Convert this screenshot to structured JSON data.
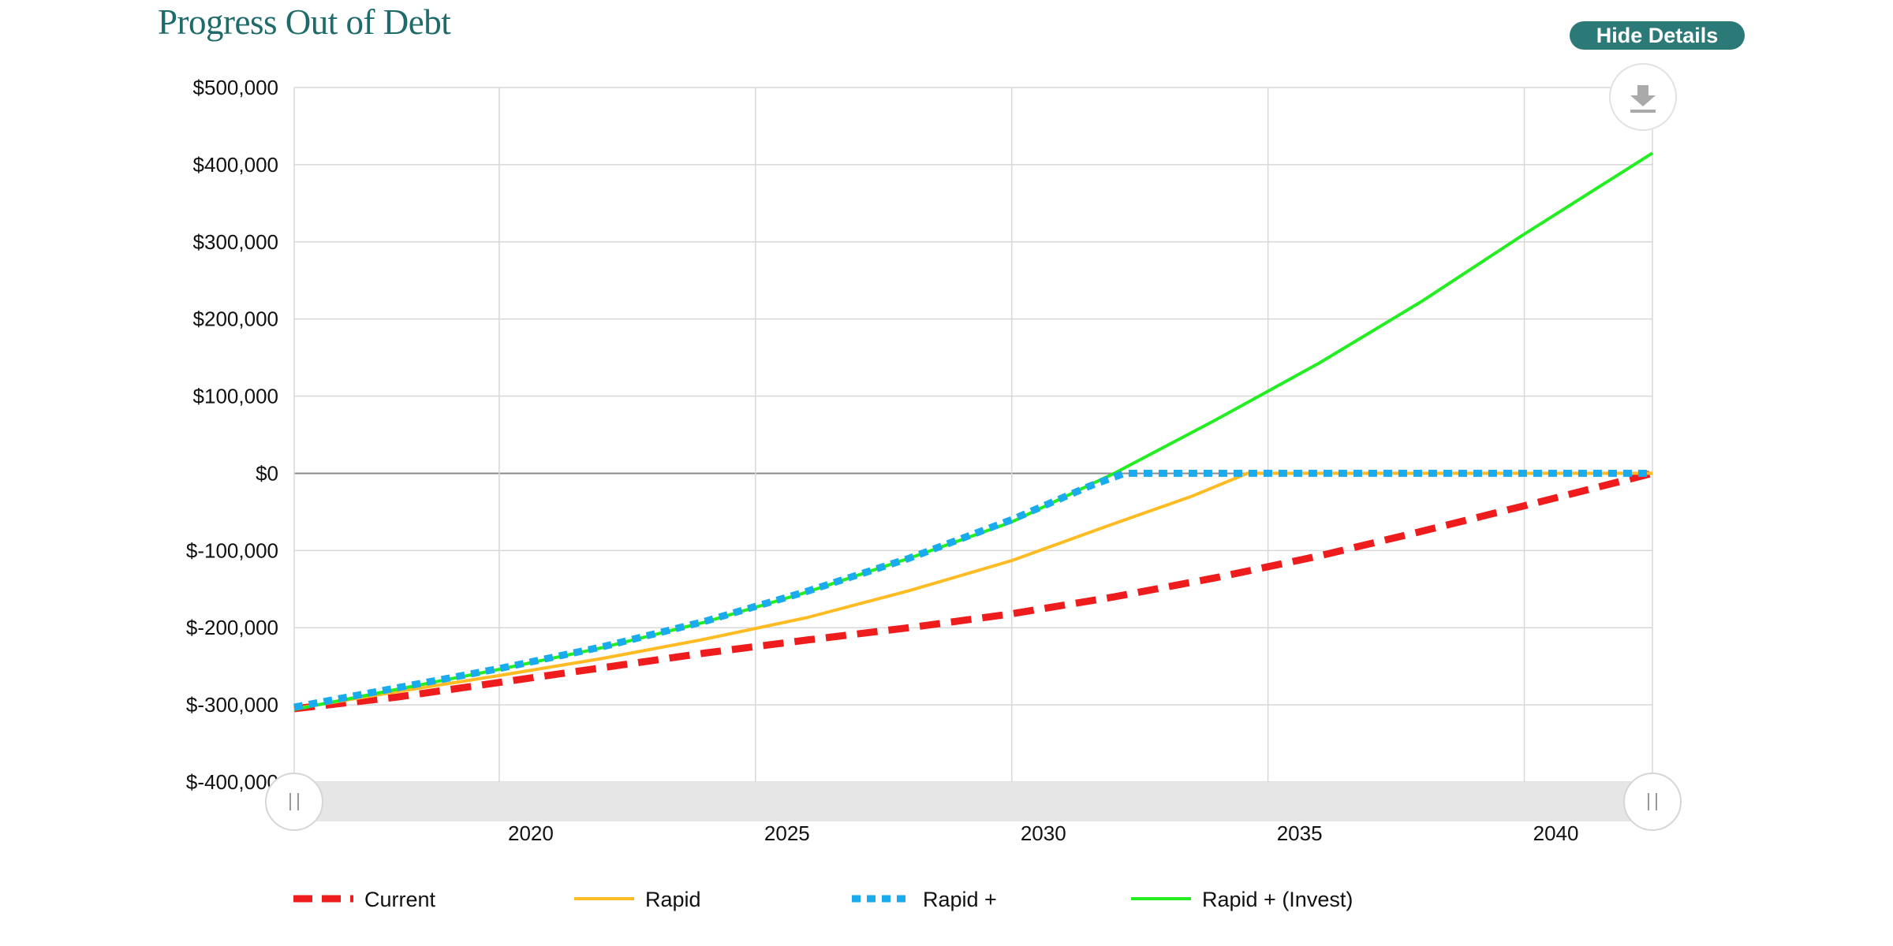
{
  "header": {
    "title": "Progress Out of Debt",
    "hide_details_label": "Hide Details"
  },
  "toolbar": {
    "export_icon": "download-icon"
  },
  "colors": {
    "current": "#ee1c1c",
    "rapid": "#ffbb22",
    "rapid_plus": "#1aaaee",
    "rapid_plus_invest": "#22ee22",
    "title": "#1f6b6b",
    "button": "#2c7a78"
  },
  "chart_data": {
    "type": "line",
    "title": "Progress Out of Debt",
    "xlabel": "",
    "ylabel": "",
    "xlim": [
      2016.0,
      2042.5
    ],
    "ylim": [
      -400000,
      500000
    ],
    "x_ticks": [
      2020,
      2025,
      2030,
      2035,
      2040
    ],
    "x_tick_labels": [
      "2020",
      "2025",
      "2030",
      "2035",
      "2040"
    ],
    "y_ticks": [
      -400000,
      -300000,
      -200000,
      -100000,
      0,
      100000,
      200000,
      300000,
      400000,
      500000
    ],
    "y_tick_labels": [
      "$-400,000",
      "$-300,000",
      "$-200,000",
      "$-100,000",
      "$0",
      "$100,000",
      "$200,000",
      "$300,000",
      "$400,000",
      "$500,000"
    ],
    "grid": true,
    "legend_position": "bottom",
    "series": [
      {
        "name": "Current",
        "style": "dashed",
        "x": [
          2016.0,
          2018,
          2020,
          2022,
          2024,
          2026,
          2028,
          2030,
          2032,
          2034,
          2036,
          2038,
          2040,
          2042.5
        ],
        "y": [
          -305000,
          -290000,
          -271000,
          -252000,
          -233000,
          -216000,
          -200000,
          -182000,
          -160000,
          -135000,
          -107000,
          -75000,
          -42000,
          0
        ]
      },
      {
        "name": "Rapid",
        "style": "solid",
        "x": [
          2016.0,
          2018,
          2020,
          2022,
          2024,
          2026,
          2028,
          2030,
          2032,
          2033.5,
          2034.6,
          2036,
          2038,
          2040,
          2042.5
        ],
        "y": [
          -305000,
          -283000,
          -262000,
          -240000,
          -215000,
          -187000,
          -152000,
          -113000,
          -65000,
          -30000,
          0,
          0,
          0,
          0,
          0
        ]
      },
      {
        "name": "Rapid +",
        "style": "dotted",
        "x": [
          2016.0,
          2018,
          2020,
          2022,
          2024,
          2026,
          2028,
          2030,
          2031.5,
          2032.2,
          2034,
          2036,
          2038,
          2040,
          2042.5
        ],
        "y": [
          -303000,
          -278000,
          -253000,
          -225000,
          -192000,
          -153000,
          -110000,
          -60000,
          -17000,
          0,
          0,
          0,
          0,
          0,
          0
        ]
      },
      {
        "name": "Rapid + (Invest)",
        "style": "solid",
        "x": [
          2016.0,
          2018,
          2020,
          2022,
          2024,
          2026,
          2028,
          2030,
          2032,
          2034,
          2036,
          2038,
          2040,
          2042.5
        ],
        "y": [
          -306000,
          -280000,
          -254000,
          -226000,
          -193000,
          -154000,
          -110000,
          -63000,
          0,
          70000,
          143000,
          223000,
          310000,
          415000
        ]
      }
    ]
  }
}
